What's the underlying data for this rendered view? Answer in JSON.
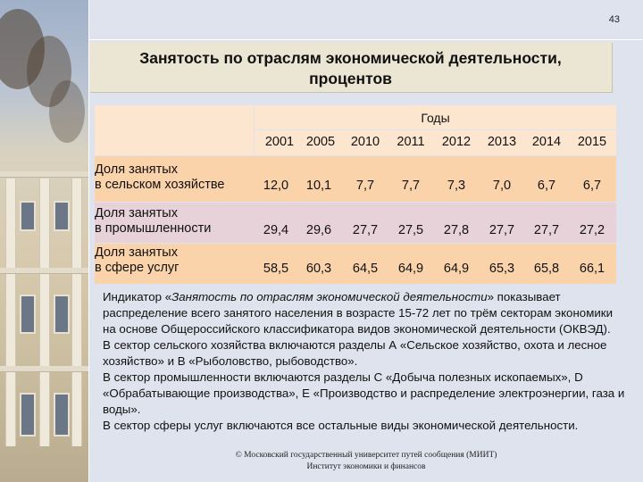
{
  "page_number": "43",
  "title_line1": "Занятость по отраслям экономической деятельности,",
  "title_line2": "процентов",
  "table": {
    "years_caption": "Годы",
    "years": [
      "2001",
      "2005",
      "2010",
      "2011",
      "2012",
      "2013",
      "2014",
      "2015"
    ],
    "rows": [
      {
        "label_line1": "Доля занятых",
        "label_line2": "в сельском хозяйстве",
        "values": [
          "12,0",
          "10,1",
          "7,7",
          "7,7",
          "7,3",
          "7,0",
          "6,7",
          "6,7"
        ],
        "color": "#fbd3ab"
      },
      {
        "label_line1": "Доля занятых",
        "label_line2": "в промышленности",
        "values": [
          "29,4",
          "29,6",
          "27,7",
          "27,5",
          "27,8",
          "27,7",
          "27,7",
          "27,2"
        ],
        "color": "#e6d2d8"
      },
      {
        "label_line1": "Доля занятых",
        "label_line2": "в сфере услуг",
        "values": [
          "58,5",
          "60,3",
          "64,5",
          "64,9",
          "64,9",
          "65,3",
          "65,8",
          "66,1"
        ],
        "color": "#fbd3ab"
      }
    ]
  },
  "description": {
    "p1_prefix": "Индикатор «",
    "p1_italic": "Занятость по отраслям экономической деятельности",
    "p1_suffix": "» показывает распределение всего занятого населения в возрасте 15-72 лет по трём секторам экономики на основе Общероссийского классификатора видов экономической деятельности (ОКВЭД).",
    "p2": "В сектор сельского хозяйства включаются разделы А «Сельское хозяйство, охота и лесное хозяйство» и В «Рыболовство, рыбоводство».",
    "p3": "В сектор промышленности включаются разделы С «Добыча полезных ископаемых», D «Обрабатывающие производства», Е «Производство и распределение электроэнергии, газа и воды».",
    "p4": "В сектор сферы услуг включаются все остальные виды экономической деятельности."
  },
  "footer": {
    "line1": "© Московский государственный университет путей сообщения (МИИТ)",
    "line2": "Институт экономики и финансов"
  }
}
